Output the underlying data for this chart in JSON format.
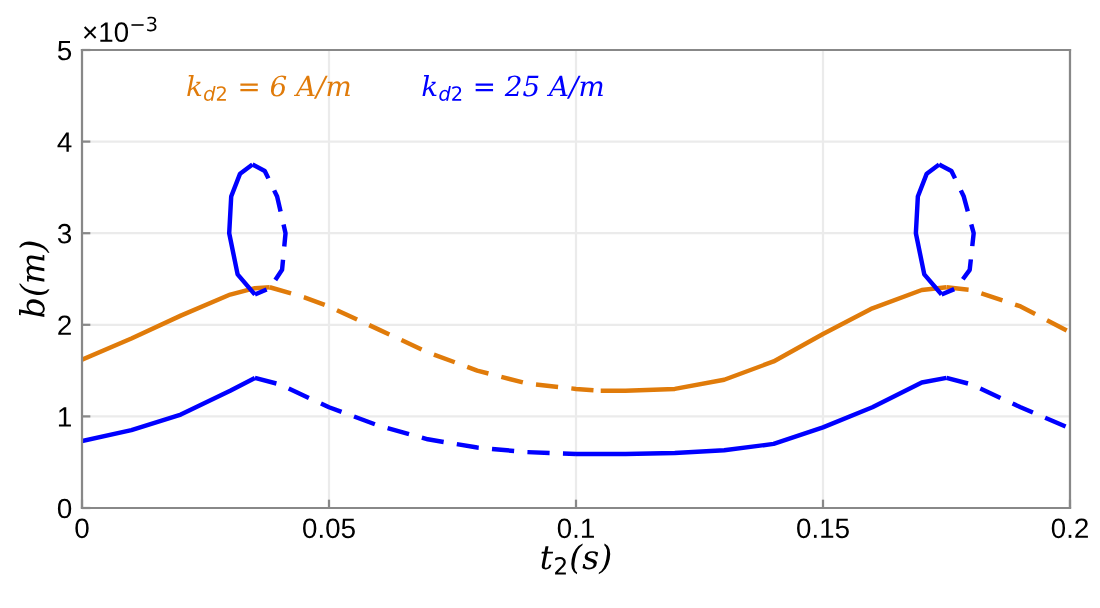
{
  "chart_data": {
    "type": "line",
    "xlabel": "t$_{2}$(s)",
    "ylabel": "b(m)",
    "annotations": [
      "×10$^{−3}$"
    ],
    "xlim": [
      0,
      0.2
    ],
    "xticks": [
      0,
      0.05,
      0.1,
      0.15,
      0.2
    ],
    "ylim": [
      0,
      5
    ],
    "yticks": [
      0,
      1,
      2,
      3,
      4,
      5
    ],
    "grid": true,
    "legend": "top left",
    "marker": "none",
    "series": [
      {
        "name": "k$_{d2}$ = 6 A/m",
        "color": "#e07b0a",
        "line_style": "solid",
        "x": [
          0,
          0.01,
          0.02,
          0.03,
          0.035,
          0.038
        ],
        "values": [
          1.62,
          1.85,
          2.1,
          2.33,
          2.4,
          2.41
        ]
      },
      {
        "name": "k$_{d2}$ = 25 A/m",
        "color": "#0000ff",
        "line_style": "solid",
        "x": [
          0,
          0.01,
          0.02,
          0.03,
          0.035
        ],
        "values": [
          0.73,
          0.85,
          1.02,
          1.28,
          1.42
        ]
      },
      {
        "color": "#e07b0a",
        "line_style": "dashed",
        "x": [
          0.038,
          0.045,
          0.05,
          0.06,
          0.07,
          0.08,
          0.09,
          0.1,
          0.105
        ],
        "values": [
          2.41,
          2.3,
          2.2,
          1.95,
          1.7,
          1.5,
          1.36,
          1.3,
          1.28
        ]
      },
      {
        "color": "#e07b0a",
        "line_style": "solid",
        "x": [
          0.105,
          0.11,
          0.12,
          0.13,
          0.14,
          0.15,
          0.16,
          0.17,
          0.175
        ],
        "values": [
          1.28,
          1.28,
          1.3,
          1.4,
          1.6,
          1.9,
          2.18,
          2.38,
          2.41
        ]
      },
      {
        "color": "#e07b0a",
        "line_style": "dashed",
        "x": [
          0.175,
          0.18,
          0.19,
          0.2
        ],
        "values": [
          2.41,
          2.38,
          2.2,
          1.92
        ]
      },
      {
        "color": "#0000ff",
        "line_style": "dashed",
        "x": [
          0.035,
          0.04,
          0.05,
          0.06,
          0.07,
          0.08,
          0.09,
          0.1
        ],
        "values": [
          1.42,
          1.35,
          1.1,
          0.9,
          0.75,
          0.66,
          0.61,
          0.59
        ]
      },
      {
        "color": "#0000ff",
        "line_style": "solid",
        "x": [
          0.1,
          0.11,
          0.12,
          0.13,
          0.14,
          0.15,
          0.16,
          0.17,
          0.175
        ],
        "values": [
          0.59,
          0.59,
          0.6,
          0.63,
          0.7,
          0.88,
          1.1,
          1.37,
          1.42
        ]
      },
      {
        "color": "#0000ff",
        "line_style": "dashed",
        "x": [
          0.175,
          0.18,
          0.19,
          0.2
        ],
        "values": [
          1.42,
          1.35,
          1.1,
          0.87
        ]
      },
      {
        "color": "#0000ff",
        "line_style": "solid",
        "x": [
          0.035,
          0.0315,
          0.0298,
          0.0302,
          0.032,
          0.0345
        ],
        "values": [
          2.33,
          2.55,
          3.0,
          3.4,
          3.65,
          3.75
        ]
      },
      {
        "color": "#0000ff",
        "line_style": "dashed",
        "x": [
          0.0345,
          0.037,
          0.0395,
          0.0412,
          0.0405,
          0.038,
          0.035
        ],
        "values": [
          3.75,
          3.68,
          3.4,
          3.0,
          2.6,
          2.4,
          2.33
        ]
      },
      {
        "color": "#0000ff",
        "line_style": "solid",
        "x": [
          0.174,
          0.1705,
          0.1688,
          0.1692,
          0.171,
          0.1735
        ],
        "values": [
          2.33,
          2.55,
          3.0,
          3.4,
          3.65,
          3.75
        ]
      },
      {
        "color": "#0000ff",
        "line_style": "dashed",
        "x": [
          0.1735,
          0.176,
          0.1785,
          0.1805,
          0.1797,
          0.177,
          0.174
        ],
        "values": [
          3.75,
          3.68,
          3.4,
          3.0,
          2.6,
          2.4,
          2.33
        ]
      }
    ]
  }
}
